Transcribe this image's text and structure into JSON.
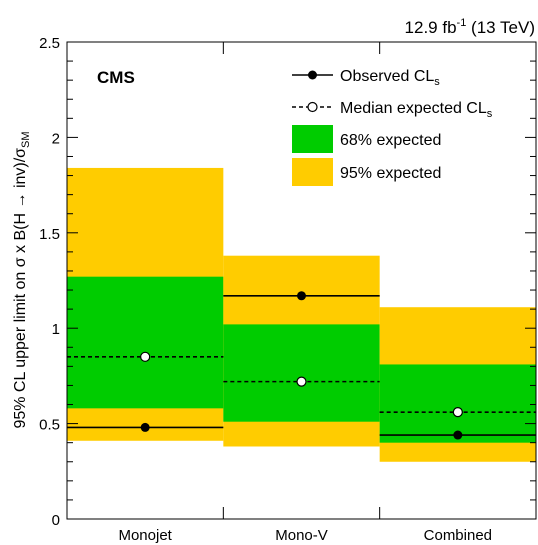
{
  "chart_data": {
    "type": "bar",
    "categories": [
      "Monojet",
      "Mono-V",
      "Combined"
    ],
    "lumi_main": "12.9 fb",
    "lumi_sup": "-1",
    "lumi_tail": " (13 TeV)",
    "cms_label": "CMS",
    "ylabel_parts": [
      "95% CL upper limit on σ x B(H → inv)/σ",
      "SM"
    ],
    "ylim": [
      0,
      2.5
    ],
    "yticks": [
      "0",
      "0.5",
      "1",
      "1.5",
      "2",
      "2.5"
    ],
    "observed": [
      0.48,
      1.17,
      0.44
    ],
    "expected": [
      0.85,
      0.72,
      0.56
    ],
    "band68": [
      [
        0.58,
        1.27
      ],
      [
        0.51,
        1.02
      ],
      [
        0.4,
        0.81
      ]
    ],
    "band95": [
      [
        0.41,
        1.84
      ],
      [
        0.38,
        1.38
      ],
      [
        0.3,
        1.11
      ]
    ],
    "legend": [
      {
        "label": "Observed CL",
        "sub": "s",
        "kind": "observed"
      },
      {
        "label": "Median expected CL",
        "sub": "s",
        "kind": "expected"
      },
      {
        "label": "68% expected",
        "kind": "band68"
      },
      {
        "label": "95% expected",
        "kind": "band95"
      }
    ],
    "colors": {
      "band68": "#00cc00",
      "band95": "#ffcc00",
      "line": "#000000"
    },
    "grid": false,
    "legend_position": "top-right"
  }
}
